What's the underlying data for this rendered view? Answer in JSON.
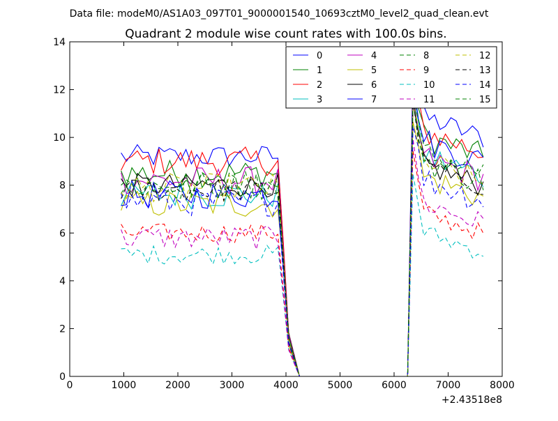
{
  "chart_data": {
    "type": "line",
    "suptitle": "Data file: modeM0/AS1A03_097T01_9000001540_10693cztM0_level2_quad_clean.evt",
    "title": "Quadrant 2 module wise count rates with 100.0s bins.",
    "xlabel": "",
    "ylabel": "",
    "x_offset_label": "+2.43518e8",
    "xlim": [
      0,
      8000
    ],
    "ylim": [
      0,
      14
    ],
    "xticks": [
      0,
      1000,
      2000,
      3000,
      4000,
      5000,
      6000,
      7000,
      8000
    ],
    "yticks": [
      0,
      2,
      4,
      6,
      8,
      10,
      12,
      14
    ],
    "legend_position": "top-right",
    "legend_columns": 4,
    "bins": {
      "seg1_start": 950,
      "seg1_step": 100,
      "seg1_count": 32,
      "gap_x": [
        4250,
        4350,
        4450,
        4550,
        4650,
        4750,
        4850,
        4950,
        5050,
        5150,
        5250,
        5350,
        5450,
        5550,
        5650,
        5750,
        5850,
        5950,
        6050,
        6150,
        6250
      ],
      "seg2_start": 6350,
      "seg2_step": 100,
      "seg2_count": 14
    },
    "series": [
      {
        "name": "0",
        "color": "#0000ff",
        "dash": "solid",
        "level1": 9.2,
        "level2": 11.0,
        "jitter": 0.25
      },
      {
        "name": "1",
        "color": "#008000",
        "dash": "solid",
        "level1": 8.5,
        "level2": 10.2,
        "jitter": 0.3
      },
      {
        "name": "2",
        "color": "#ff0000",
        "dash": "solid",
        "level1": 9.0,
        "level2": 10.4,
        "jitter": 0.3
      },
      {
        "name": "3",
        "color": "#00bfbf",
        "dash": "solid",
        "level1": 7.6,
        "level2": 9.4,
        "jitter": 0.3
      },
      {
        "name": "4",
        "color": "#bf00bf",
        "dash": "solid",
        "level1": 8.2,
        "level2": 9.3,
        "jitter": 0.3
      },
      {
        "name": "5",
        "color": "#bfbf00",
        "dash": "solid",
        "level1": 7.2,
        "level2": 8.5,
        "jitter": 0.3
      },
      {
        "name": "6",
        "color": "#000000",
        "dash": "solid",
        "level1": 8.0,
        "level2": 9.0,
        "jitter": 0.25
      },
      {
        "name": "7",
        "color": "#0000ff",
        "dash": "solid",
        "level1": 7.6,
        "level2": 10.0,
        "jitter": 0.3
      },
      {
        "name": "8",
        "color": "#008000",
        "dash": "dashed",
        "level1": 8.0,
        "level2": 9.5,
        "jitter": 0.3
      },
      {
        "name": "9",
        "color": "#ff0000",
        "dash": "dashed",
        "level1": 6.0,
        "level2": 7.0,
        "jitter": 0.2
      },
      {
        "name": "10",
        "color": "#00bfbf",
        "dash": "dashed",
        "level1": 5.1,
        "level2": 6.2,
        "jitter": 0.2
      },
      {
        "name": "11",
        "color": "#bf00bf",
        "dash": "dashed",
        "level1": 5.8,
        "level2": 7.4,
        "jitter": 0.25
      },
      {
        "name": "12",
        "color": "#bfbf00",
        "dash": "dashed",
        "level1": 7.9,
        "level2": 9.1,
        "jitter": 0.3
      },
      {
        "name": "13",
        "color": "#000000",
        "dash": "dashed",
        "level1": 7.8,
        "level2": 9.0,
        "jitter": 0.25
      },
      {
        "name": "14",
        "color": "#0000ff",
        "dash": "dashed",
        "level1": 7.3,
        "level2": 8.4,
        "jitter": 0.3
      },
      {
        "name": "15",
        "color": "#008000",
        "dash": "dashed",
        "level1": 8.0,
        "level2": 9.2,
        "jitter": 0.3
      }
    ]
  }
}
